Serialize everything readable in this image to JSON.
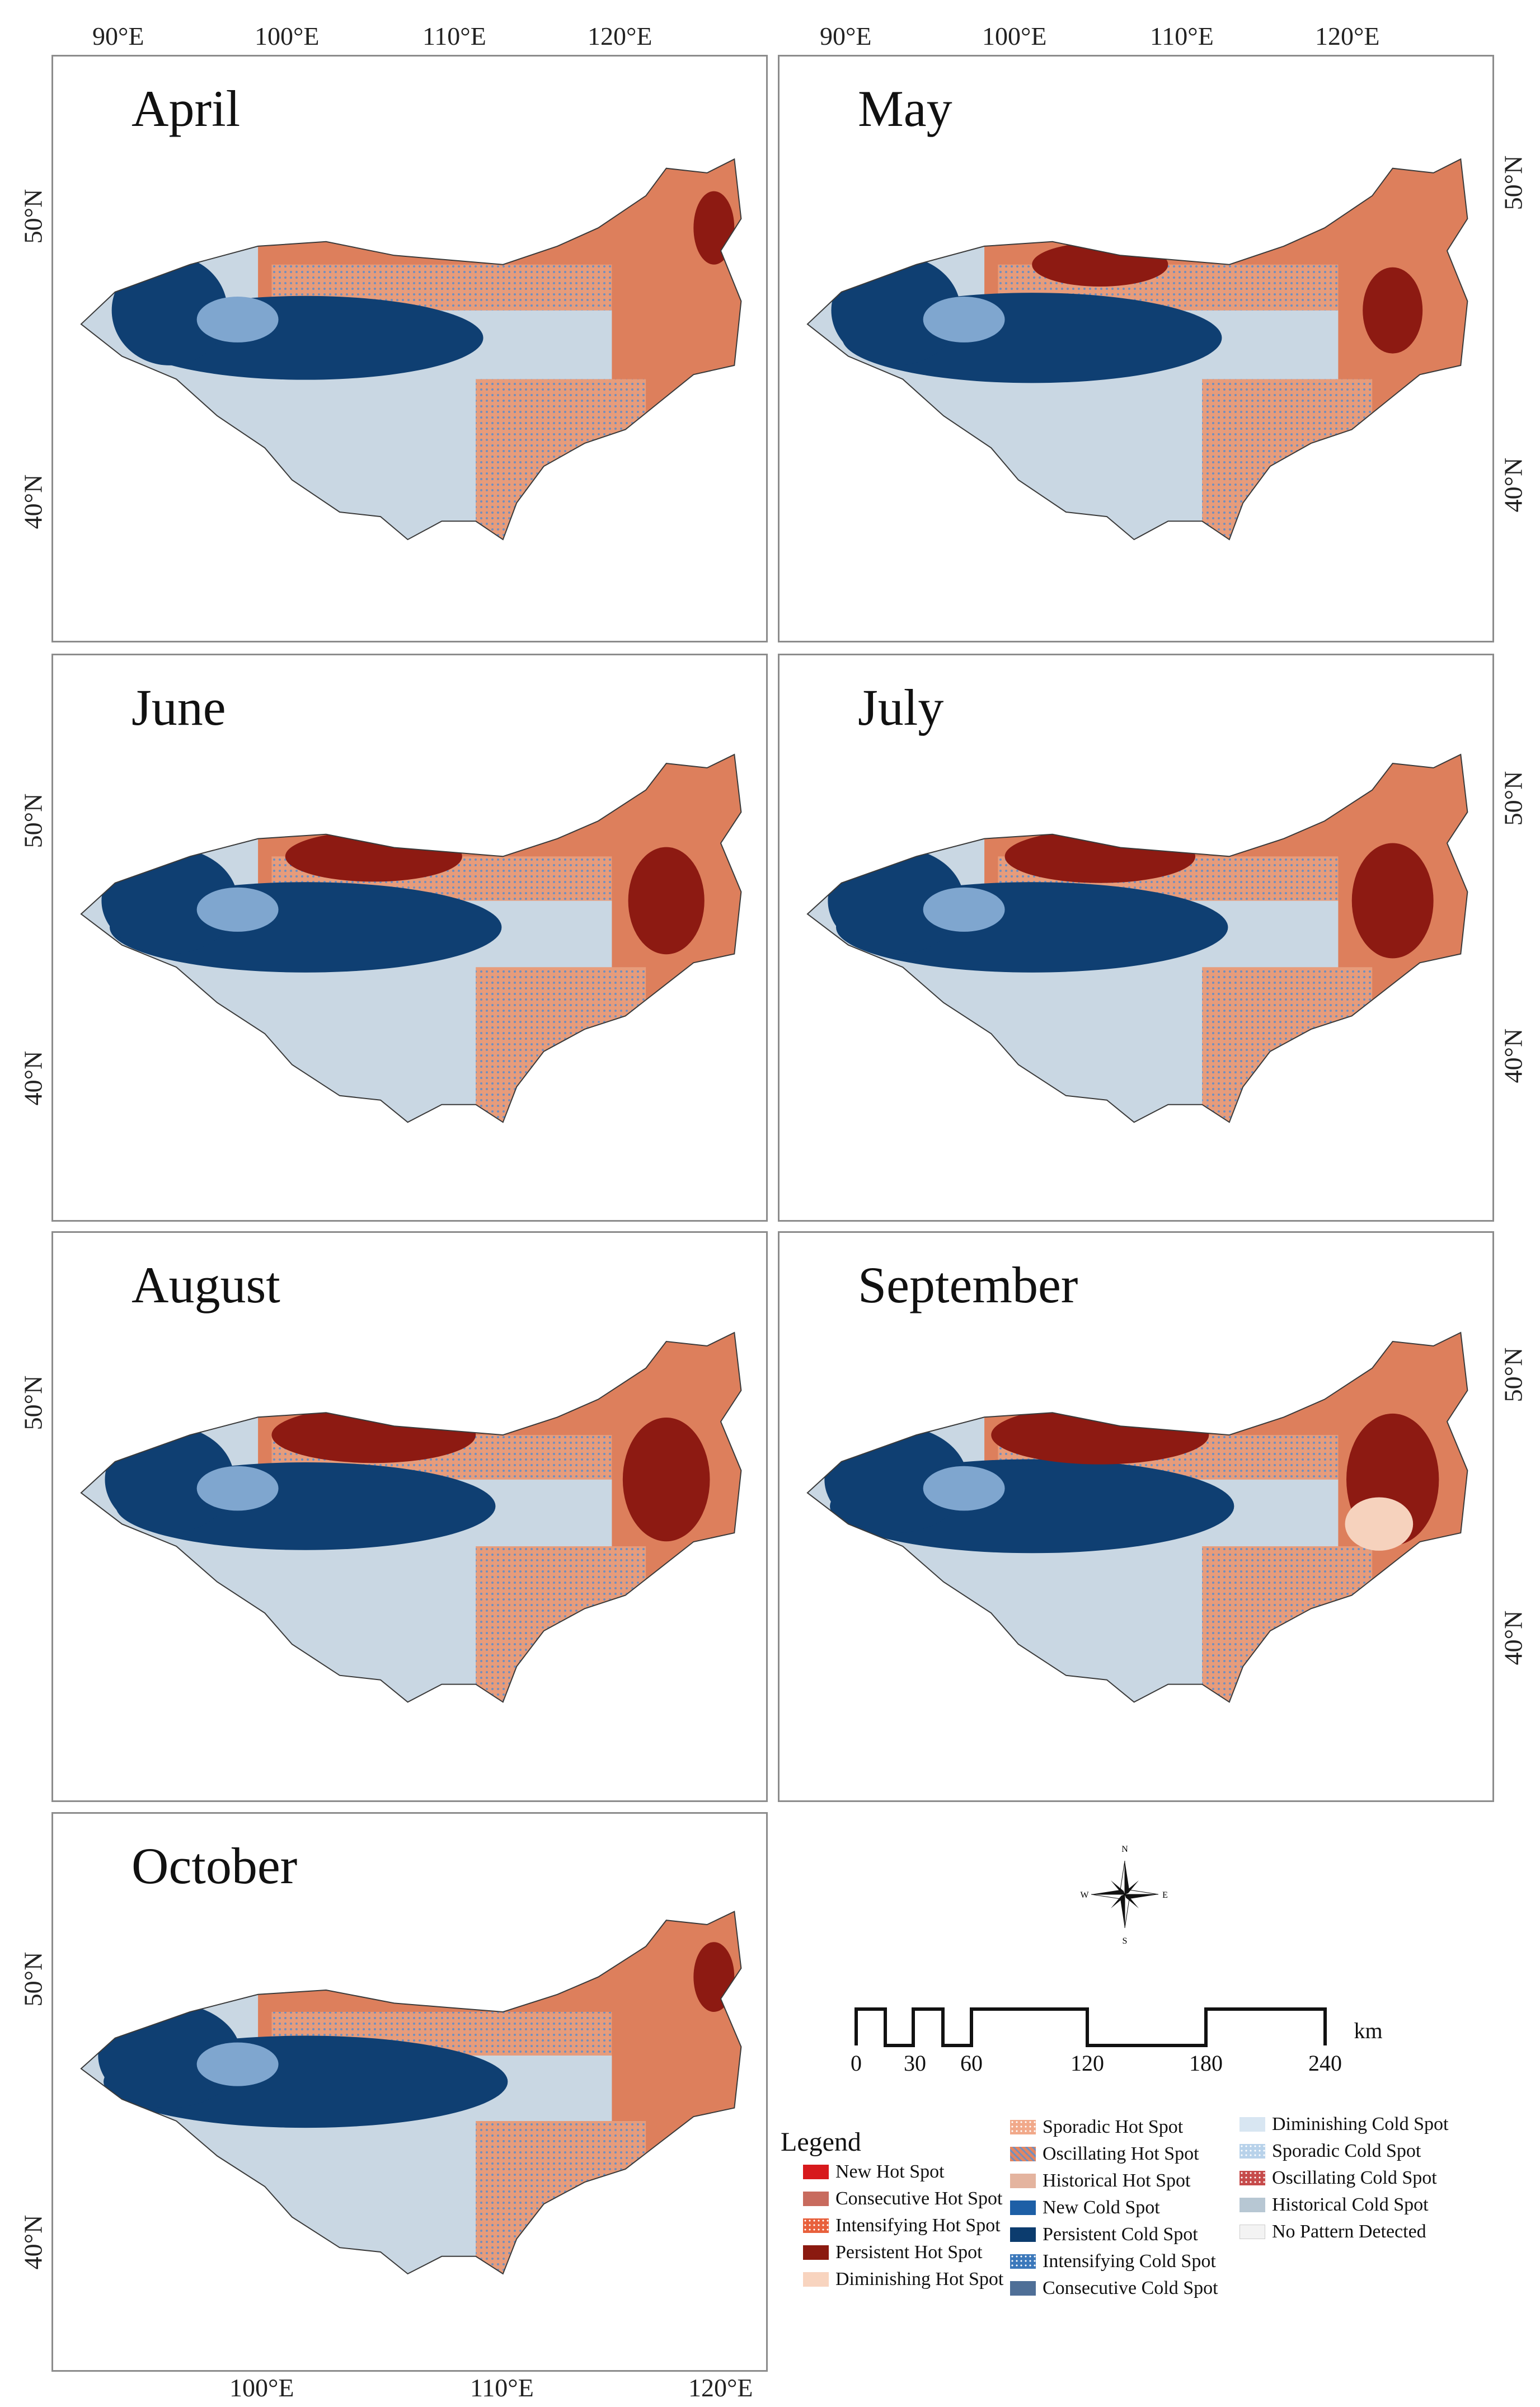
{
  "top_longitude_labels": [
    "90°E",
    "100°E",
    "110°E",
    "120°E"
  ],
  "bottom_longitude_labels": [
    "100°E",
    "110°E",
    "120°E"
  ],
  "latitude_labels": [
    "50°N",
    "40°N"
  ],
  "panels": [
    {
      "title": "April",
      "cold_core": 0.45,
      "hot_core": 0.1
    },
    {
      "title": "May",
      "cold_core": 0.55,
      "hot_core": 0.3
    },
    {
      "title": "June",
      "cold_core": 0.6,
      "hot_core": 0.45
    },
    {
      "title": "July",
      "cold_core": 0.6,
      "hot_core": 0.5
    },
    {
      "title": "August",
      "cold_core": 0.55,
      "hot_core": 0.55
    },
    {
      "title": "September",
      "cold_core": 0.65,
      "hot_core": 0.6
    },
    {
      "title": "October",
      "cold_core": 0.65,
      "hot_core": 0.15
    }
  ],
  "scale_bar": {
    "labels": [
      "0",
      "30",
      "60",
      "120",
      "180",
      "240"
    ],
    "unit": "km"
  },
  "compass": {
    "n": "N",
    "s": "S",
    "e": "E",
    "w": "W"
  },
  "legend": {
    "title": "Legend",
    "items": [
      {
        "label": "New Hot Spot",
        "color": "#d7191c",
        "pattern": "solid"
      },
      {
        "label": "Consecutive Hot Spot",
        "color": "#c86b5e",
        "pattern": "solid"
      },
      {
        "label": "Intensifying Hot Spot",
        "color": "#e8603c",
        "pattern": "dots"
      },
      {
        "label": "Persistent Hot Spot",
        "color": "#8b1a10",
        "pattern": "solid"
      },
      {
        "label": "Diminishing Hot Spot",
        "color": "#f8d4bf",
        "pattern": "solid"
      },
      {
        "label": "Sporadic Hot Spot",
        "color": "#f1a98a",
        "pattern": "dots"
      },
      {
        "label": "Oscillating Hot Spot",
        "color": "#e38561",
        "pattern": "stripes"
      },
      {
        "label": "Historical Hot Spot",
        "color": "#e4b49f",
        "pattern": "solid"
      },
      {
        "label": "New Cold Spot",
        "color": "#1d5fa6",
        "pattern": "solid"
      },
      {
        "label": "Persistent Cold Spot",
        "color": "#0c3c6e",
        "pattern": "solid"
      },
      {
        "label": "Intensifying Cold Spot",
        "color": "#3b78bb",
        "pattern": "dots"
      },
      {
        "label": "Consecutive Cold Spot",
        "color": "#4f6f97",
        "pattern": "solid"
      },
      {
        "label": "Diminishing Cold Spot",
        "color": "#d8e6f2",
        "pattern": "solid"
      },
      {
        "label": "Sporadic Cold Spot",
        "color": "#b8d2ea",
        "pattern": "dots"
      },
      {
        "label": "Oscillating Cold Spot",
        "color": "#c64b4b",
        "pattern": "dots"
      },
      {
        "label": "Historical Cold Spot",
        "color": "#b7c7d3",
        "pattern": "solid"
      },
      {
        "label": "No Pattern Detected",
        "color": "#f3f3f3",
        "pattern": "solid"
      }
    ]
  },
  "map_colors": {
    "light_cold": "#c9d7e3",
    "mid_cold": "#7fa6cf",
    "persistent_cold": "#0f3f72",
    "oscillating_hot": "#e79c7b",
    "consecutive_hot": "#dd7f5c",
    "persistent_hot": "#8d1a12",
    "diminishing_hot": "#f6d2bd",
    "boundary": "#3a3a3a"
  }
}
